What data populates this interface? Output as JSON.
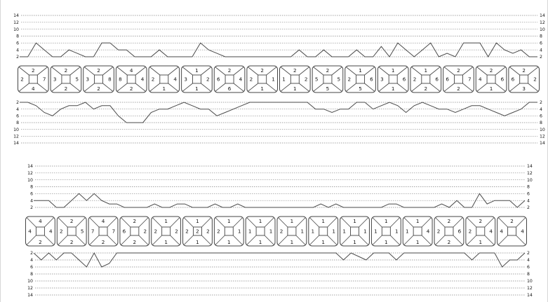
{
  "scale_labels": [
    "14",
    "12",
    "10",
    "8",
    "6",
    "4",
    "2"
  ],
  "colors": {
    "line": "#4a4a4a",
    "box": "#444444",
    "grid": "#888888",
    "text": "#111111"
  },
  "upper": {
    "top_chart": [
      2,
      2,
      6,
      4,
      2,
      2,
      4,
      3,
      2,
      2,
      6,
      6,
      4,
      4,
      2,
      2,
      2,
      4,
      2,
      2,
      2,
      2,
      6,
      4,
      3,
      2,
      2,
      2,
      2,
      2,
      2,
      2,
      2,
      2,
      4,
      2,
      2,
      4,
      2,
      2,
      2,
      4,
      2,
      2,
      5,
      2,
      6,
      4,
      2,
      4,
      6,
      2,
      3,
      2,
      6,
      6,
      6,
      2,
      6,
      4,
      3,
      4,
      2,
      2
    ],
    "bottom_chart": [
      2,
      2,
      3,
      5,
      6,
      4,
      3,
      3,
      2,
      4,
      3,
      3,
      6,
      8,
      8,
      8,
      5,
      4,
      4,
      3,
      2,
      3,
      4,
      4,
      6,
      5,
      4,
      3,
      2,
      2,
      2,
      2,
      2,
      2,
      2,
      2,
      4,
      4,
      5,
      4,
      4,
      2,
      2,
      4,
      3,
      2,
      3,
      5,
      3,
      2,
      3,
      4,
      4,
      5,
      4,
      3,
      3,
      4,
      5,
      6,
      5,
      4,
      2,
      2
    ],
    "teeth": [
      {
        "top": "2",
        "bottom": "4",
        "left": "2",
        "right": "7",
        "center": ""
      },
      {
        "top": "2",
        "bottom": "2",
        "left": "3",
        "right": "5",
        "center": ""
      },
      {
        "top": "2",
        "bottom": "2",
        "left": "3",
        "right": "8",
        "center": ""
      },
      {
        "top": "4",
        "bottom": "2",
        "left": "8",
        "right": "4",
        "center": ""
      },
      {
        "top": "",
        "bottom": "1",
        "left": "2",
        "right": "4",
        "center": ""
      },
      {
        "top": "1",
        "bottom": "1",
        "left": "3",
        "right": "2",
        "center": ""
      },
      {
        "top": "2",
        "bottom": "6",
        "left": "6",
        "right": "4",
        "center": ""
      },
      {
        "top": "2",
        "bottom": "1",
        "left": "2",
        "right": "1",
        "center": ""
      },
      {
        "top": "2",
        "bottom": "1",
        "left": "1",
        "right": "2",
        "center": ""
      },
      {
        "top": "2",
        "bottom": "5",
        "left": "5",
        "right": "5",
        "center": ""
      },
      {
        "top": "1",
        "bottom": "5",
        "left": "2",
        "right": "6",
        "center": ""
      },
      {
        "top": "1",
        "bottom": "1",
        "left": "3",
        "right": "6",
        "center": ""
      },
      {
        "top": "1",
        "bottom": "2",
        "left": "2",
        "right": "6",
        "center": ""
      },
      {
        "top": "2",
        "bottom": "2",
        "left": "6",
        "right": "7",
        "center": ""
      },
      {
        "top": "2",
        "bottom": "1",
        "left": "4",
        "right": "6",
        "center": ""
      },
      {
        "top": "2",
        "bottom": "3",
        "left": "6",
        "right": "2",
        "center": ""
      }
    ]
  },
  "lower": {
    "top_chart": [
      4,
      4,
      4,
      2,
      2,
      4,
      6,
      4,
      6,
      4,
      3,
      3,
      2,
      2,
      2,
      2,
      3,
      2,
      2,
      3,
      3,
      2,
      2,
      2,
      3,
      2,
      2,
      3,
      2,
      2,
      2,
      2,
      2,
      2,
      2,
      2,
      2,
      2,
      3,
      2,
      3,
      2,
      2,
      2,
      2,
      2,
      2,
      3,
      3,
      2,
      2,
      2,
      2,
      2,
      3,
      2,
      4,
      2,
      2,
      6,
      3,
      4,
      4,
      4,
      2,
      4
    ],
    "bottom_chart": [
      2,
      4,
      2,
      4,
      2,
      2,
      4,
      6,
      2,
      6,
      5,
      2,
      2,
      2,
      2,
      2,
      2,
      2,
      2,
      2,
      2,
      2,
      2,
      2,
      2,
      2,
      2,
      2,
      2,
      2,
      2,
      2,
      2,
      2,
      2,
      2,
      2,
      2,
      2,
      2,
      2,
      4,
      2,
      3,
      4,
      2,
      2,
      2,
      4,
      2,
      2,
      2,
      2,
      2,
      2,
      2,
      2,
      2,
      4,
      2,
      2,
      2,
      6,
      4,
      4,
      2
    ],
    "teeth": [
      {
        "top": "4",
        "bottom": "2",
        "left": "4",
        "right": "4",
        "center": ""
      },
      {
        "top": "2",
        "bottom": "2",
        "left": "2",
        "right": "5",
        "center": ""
      },
      {
        "top": "4",
        "bottom": "2",
        "left": "7",
        "right": "7",
        "center": ""
      },
      {
        "top": "2",
        "bottom": "2",
        "left": "6",
        "right": "2",
        "center": ""
      },
      {
        "top": "1",
        "bottom": "1",
        "left": "2",
        "right": "2",
        "center": ""
      },
      {
        "top": "1",
        "bottom": "1",
        "left": "2",
        "right": "2",
        "center": "2"
      },
      {
        "top": "1",
        "bottom": "1",
        "left": "2",
        "right": "1",
        "center": ""
      },
      {
        "top": "1",
        "bottom": "1",
        "left": "1",
        "right": "1",
        "center": ""
      },
      {
        "top": "1",
        "bottom": "1",
        "left": "2",
        "right": "1",
        "center": ""
      },
      {
        "top": "1",
        "bottom": "1",
        "left": "1",
        "right": "1",
        "center": ""
      },
      {
        "top": "1",
        "bottom": "1",
        "left": "1",
        "right": "1",
        "center": ""
      },
      {
        "top": "1",
        "bottom": "1",
        "left": "1",
        "right": "1",
        "center": ""
      },
      {
        "top": "1",
        "bottom": "1",
        "left": "1",
        "right": "4",
        "center": ""
      },
      {
        "top": "2",
        "bottom": "2",
        "left": "2",
        "right": "6",
        "center": ""
      },
      {
        "top": "2",
        "bottom": "1",
        "left": "2",
        "right": "4",
        "center": ""
      },
      {
        "top": "2",
        "bottom": "",
        "left": "4",
        "right": "4",
        "center": ""
      }
    ]
  }
}
